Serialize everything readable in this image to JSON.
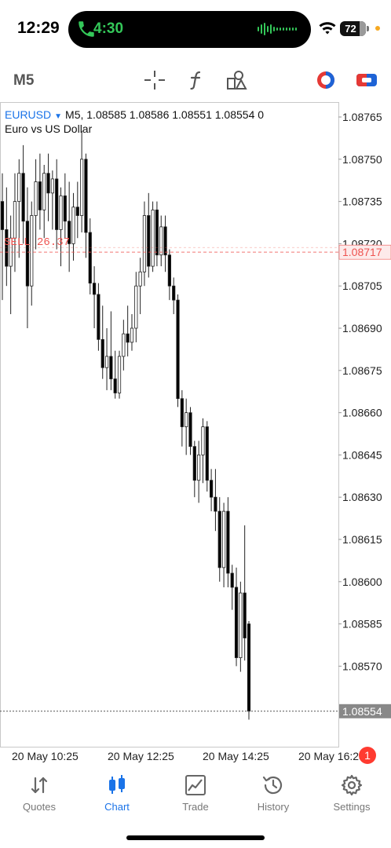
{
  "status_bar": {
    "time": "12:29",
    "call_timer": "4:30",
    "battery_percent": "72",
    "call_color": "#34c759"
  },
  "toolbar": {
    "timeframe": "M5",
    "icons": [
      "crosshair-icon",
      "indicators-icon",
      "objects-icon",
      "color-scheme-icon",
      "trade-icon"
    ]
  },
  "chart": {
    "symbol": "EURUSD",
    "timeframe": "M5",
    "ohlc": "1.08585 1.08586 1.08551 1.08554 0",
    "description": "Euro vs US Dollar",
    "order_line": {
      "label": "SELL 26.37",
      "price": "1.08717",
      "color": "#ef5350"
    },
    "current_price": "1.08554",
    "price_ticks": [
      "1.08765",
      "1.08750",
      "1.08735",
      "1.08720",
      "1.08705",
      "1.08690",
      "1.08675",
      "1.08660",
      "1.08645",
      "1.08630",
      "1.08615",
      "1.08600",
      "1.08585",
      "1.08570"
    ],
    "time_labels": [
      "20 May 10:25",
      "20 May 12:25",
      "20 May 14:25",
      "20 May 16:25"
    ]
  },
  "chart_data": {
    "type": "candlestick",
    "title": "EURUSD M5",
    "ylim": [
      1.08545,
      1.08775
    ],
    "candles": [
      {
        "o": 1.08735,
        "h": 1.08745,
        "l": 1.087,
        "c": 1.08725
      },
      {
        "o": 1.08725,
        "h": 1.0874,
        "l": 1.08705,
        "c": 1.08712
      },
      {
        "o": 1.08712,
        "h": 1.0873,
        "l": 1.08695,
        "c": 1.08722
      },
      {
        "o": 1.08722,
        "h": 1.08745,
        "l": 1.0871,
        "c": 1.08735
      },
      {
        "o": 1.08735,
        "h": 1.0875,
        "l": 1.08715,
        "c": 1.08745
      },
      {
        "o": 1.08745,
        "h": 1.08755,
        "l": 1.0872,
        "c": 1.08728
      },
      {
        "o": 1.08728,
        "h": 1.0874,
        "l": 1.0869,
        "c": 1.08705
      },
      {
        "o": 1.08705,
        "h": 1.08735,
        "l": 1.08698,
        "c": 1.0873
      },
      {
        "o": 1.0873,
        "h": 1.0875,
        "l": 1.08718,
        "c": 1.08742
      },
      {
        "o": 1.08742,
        "h": 1.08752,
        "l": 1.08725,
        "c": 1.08732
      },
      {
        "o": 1.08732,
        "h": 1.08748,
        "l": 1.08722,
        "c": 1.08745
      },
      {
        "o": 1.08745,
        "h": 1.08752,
        "l": 1.08728,
        "c": 1.08738
      },
      {
        "o": 1.08738,
        "h": 1.08746,
        "l": 1.08725,
        "c": 1.08743
      },
      {
        "o": 1.08743,
        "h": 1.0875,
        "l": 1.08718,
        "c": 1.08725
      },
      {
        "o": 1.08725,
        "h": 1.0874,
        "l": 1.08712,
        "c": 1.08737
      },
      {
        "o": 1.08737,
        "h": 1.08745,
        "l": 1.08722,
        "c": 1.08728
      },
      {
        "o": 1.08728,
        "h": 1.08742,
        "l": 1.0871,
        "c": 1.0872
      },
      {
        "o": 1.0872,
        "h": 1.08738,
        "l": 1.08714,
        "c": 1.08733
      },
      {
        "o": 1.08733,
        "h": 1.08742,
        "l": 1.08722,
        "c": 1.0873
      },
      {
        "o": 1.0873,
        "h": 1.0876,
        "l": 1.08724,
        "c": 1.0875
      },
      {
        "o": 1.0875,
        "h": 1.08752,
        "l": 1.08715,
        "c": 1.08724
      },
      {
        "o": 1.08724,
        "h": 1.08729,
        "l": 1.08702,
        "c": 1.08706
      },
      {
        "o": 1.08706,
        "h": 1.08712,
        "l": 1.0869,
        "c": 1.08702
      },
      {
        "o": 1.08702,
        "h": 1.08706,
        "l": 1.08682,
        "c": 1.08686
      },
      {
        "o": 1.08686,
        "h": 1.08698,
        "l": 1.08672,
        "c": 1.08676
      },
      {
        "o": 1.08676,
        "h": 1.0869,
        "l": 1.08668,
        "c": 1.0868
      },
      {
        "o": 1.0868,
        "h": 1.08696,
        "l": 1.08668,
        "c": 1.08672
      },
      {
        "o": 1.08672,
        "h": 1.08682,
        "l": 1.08665,
        "c": 1.08667
      },
      {
        "o": 1.08667,
        "h": 1.08682,
        "l": 1.08665,
        "c": 1.0868
      },
      {
        "o": 1.0868,
        "h": 1.08693,
        "l": 1.08675,
        "c": 1.08688
      },
      {
        "o": 1.08688,
        "h": 1.08698,
        "l": 1.0868,
        "c": 1.08685
      },
      {
        "o": 1.08685,
        "h": 1.08695,
        "l": 1.08682,
        "c": 1.0869
      },
      {
        "o": 1.0869,
        "h": 1.0871,
        "l": 1.08685,
        "c": 1.08705
      },
      {
        "o": 1.08705,
        "h": 1.08715,
        "l": 1.08695,
        "c": 1.0871
      },
      {
        "o": 1.0871,
        "h": 1.08735,
        "l": 1.08705,
        "c": 1.0873
      },
      {
        "o": 1.0873,
        "h": 1.08738,
        "l": 1.08708,
        "c": 1.08712
      },
      {
        "o": 1.08712,
        "h": 1.08735,
        "l": 1.0871,
        "c": 1.08732
      },
      {
        "o": 1.08732,
        "h": 1.08735,
        "l": 1.08712,
        "c": 1.08716
      },
      {
        "o": 1.08716,
        "h": 1.0873,
        "l": 1.08712,
        "c": 1.08726
      },
      {
        "o": 1.08726,
        "h": 1.0873,
        "l": 1.0871,
        "c": 1.08716
      },
      {
        "o": 1.08716,
        "h": 1.08718,
        "l": 1.087,
        "c": 1.08705
      },
      {
        "o": 1.08705,
        "h": 1.08708,
        "l": 1.08695,
        "c": 1.087
      },
      {
        "o": 1.087,
        "h": 1.08702,
        "l": 1.08662,
        "c": 1.08665
      },
      {
        "o": 1.08665,
        "h": 1.08668,
        "l": 1.08648,
        "c": 1.08655
      },
      {
        "o": 1.08655,
        "h": 1.08665,
        "l": 1.08645,
        "c": 1.0866
      },
      {
        "o": 1.0866,
        "h": 1.08662,
        "l": 1.08645,
        "c": 1.08648
      },
      {
        "o": 1.08648,
        "h": 1.0865,
        "l": 1.0863,
        "c": 1.08636
      },
      {
        "o": 1.08636,
        "h": 1.0865,
        "l": 1.08628,
        "c": 1.08645
      },
      {
        "o": 1.08645,
        "h": 1.08658,
        "l": 1.08635,
        "c": 1.08655
      },
      {
        "o": 1.08655,
        "h": 1.08657,
        "l": 1.08632,
        "c": 1.08636
      },
      {
        "o": 1.08636,
        "h": 1.0864,
        "l": 1.08625,
        "c": 1.0863
      },
      {
        "o": 1.0863,
        "h": 1.0864,
        "l": 1.08618,
        "c": 1.08625
      },
      {
        "o": 1.08625,
        "h": 1.0863,
        "l": 1.086,
        "c": 1.08605
      },
      {
        "o": 1.08605,
        "h": 1.08628,
        "l": 1.08598,
        "c": 1.08625
      },
      {
        "o": 1.08625,
        "h": 1.0863,
        "l": 1.08598,
        "c": 1.08603
      },
      {
        "o": 1.08603,
        "h": 1.08606,
        "l": 1.0859,
        "c": 1.08598
      },
      {
        "o": 1.08598,
        "h": 1.08605,
        "l": 1.0857,
        "c": 1.08573
      },
      {
        "o": 1.08573,
        "h": 1.086,
        "l": 1.08568,
        "c": 1.08596
      },
      {
        "o": 1.08596,
        "h": 1.0862,
        "l": 1.08572,
        "c": 1.0858
      },
      {
        "o": 1.08585,
        "h": 1.08586,
        "l": 1.08551,
        "c": 1.08554
      }
    ]
  },
  "tabs": [
    {
      "label": "Quotes",
      "icon": "quotes-icon",
      "active": false
    },
    {
      "label": "Chart",
      "icon": "chart-icon",
      "active": true
    },
    {
      "label": "Trade",
      "icon": "trade-tab-icon",
      "active": false
    },
    {
      "label": "History",
      "icon": "history-icon",
      "active": false
    },
    {
      "label": "Settings",
      "icon": "settings-icon",
      "active": false
    }
  ],
  "settings_badge": "1",
  "accent_color": "#1a73e8"
}
